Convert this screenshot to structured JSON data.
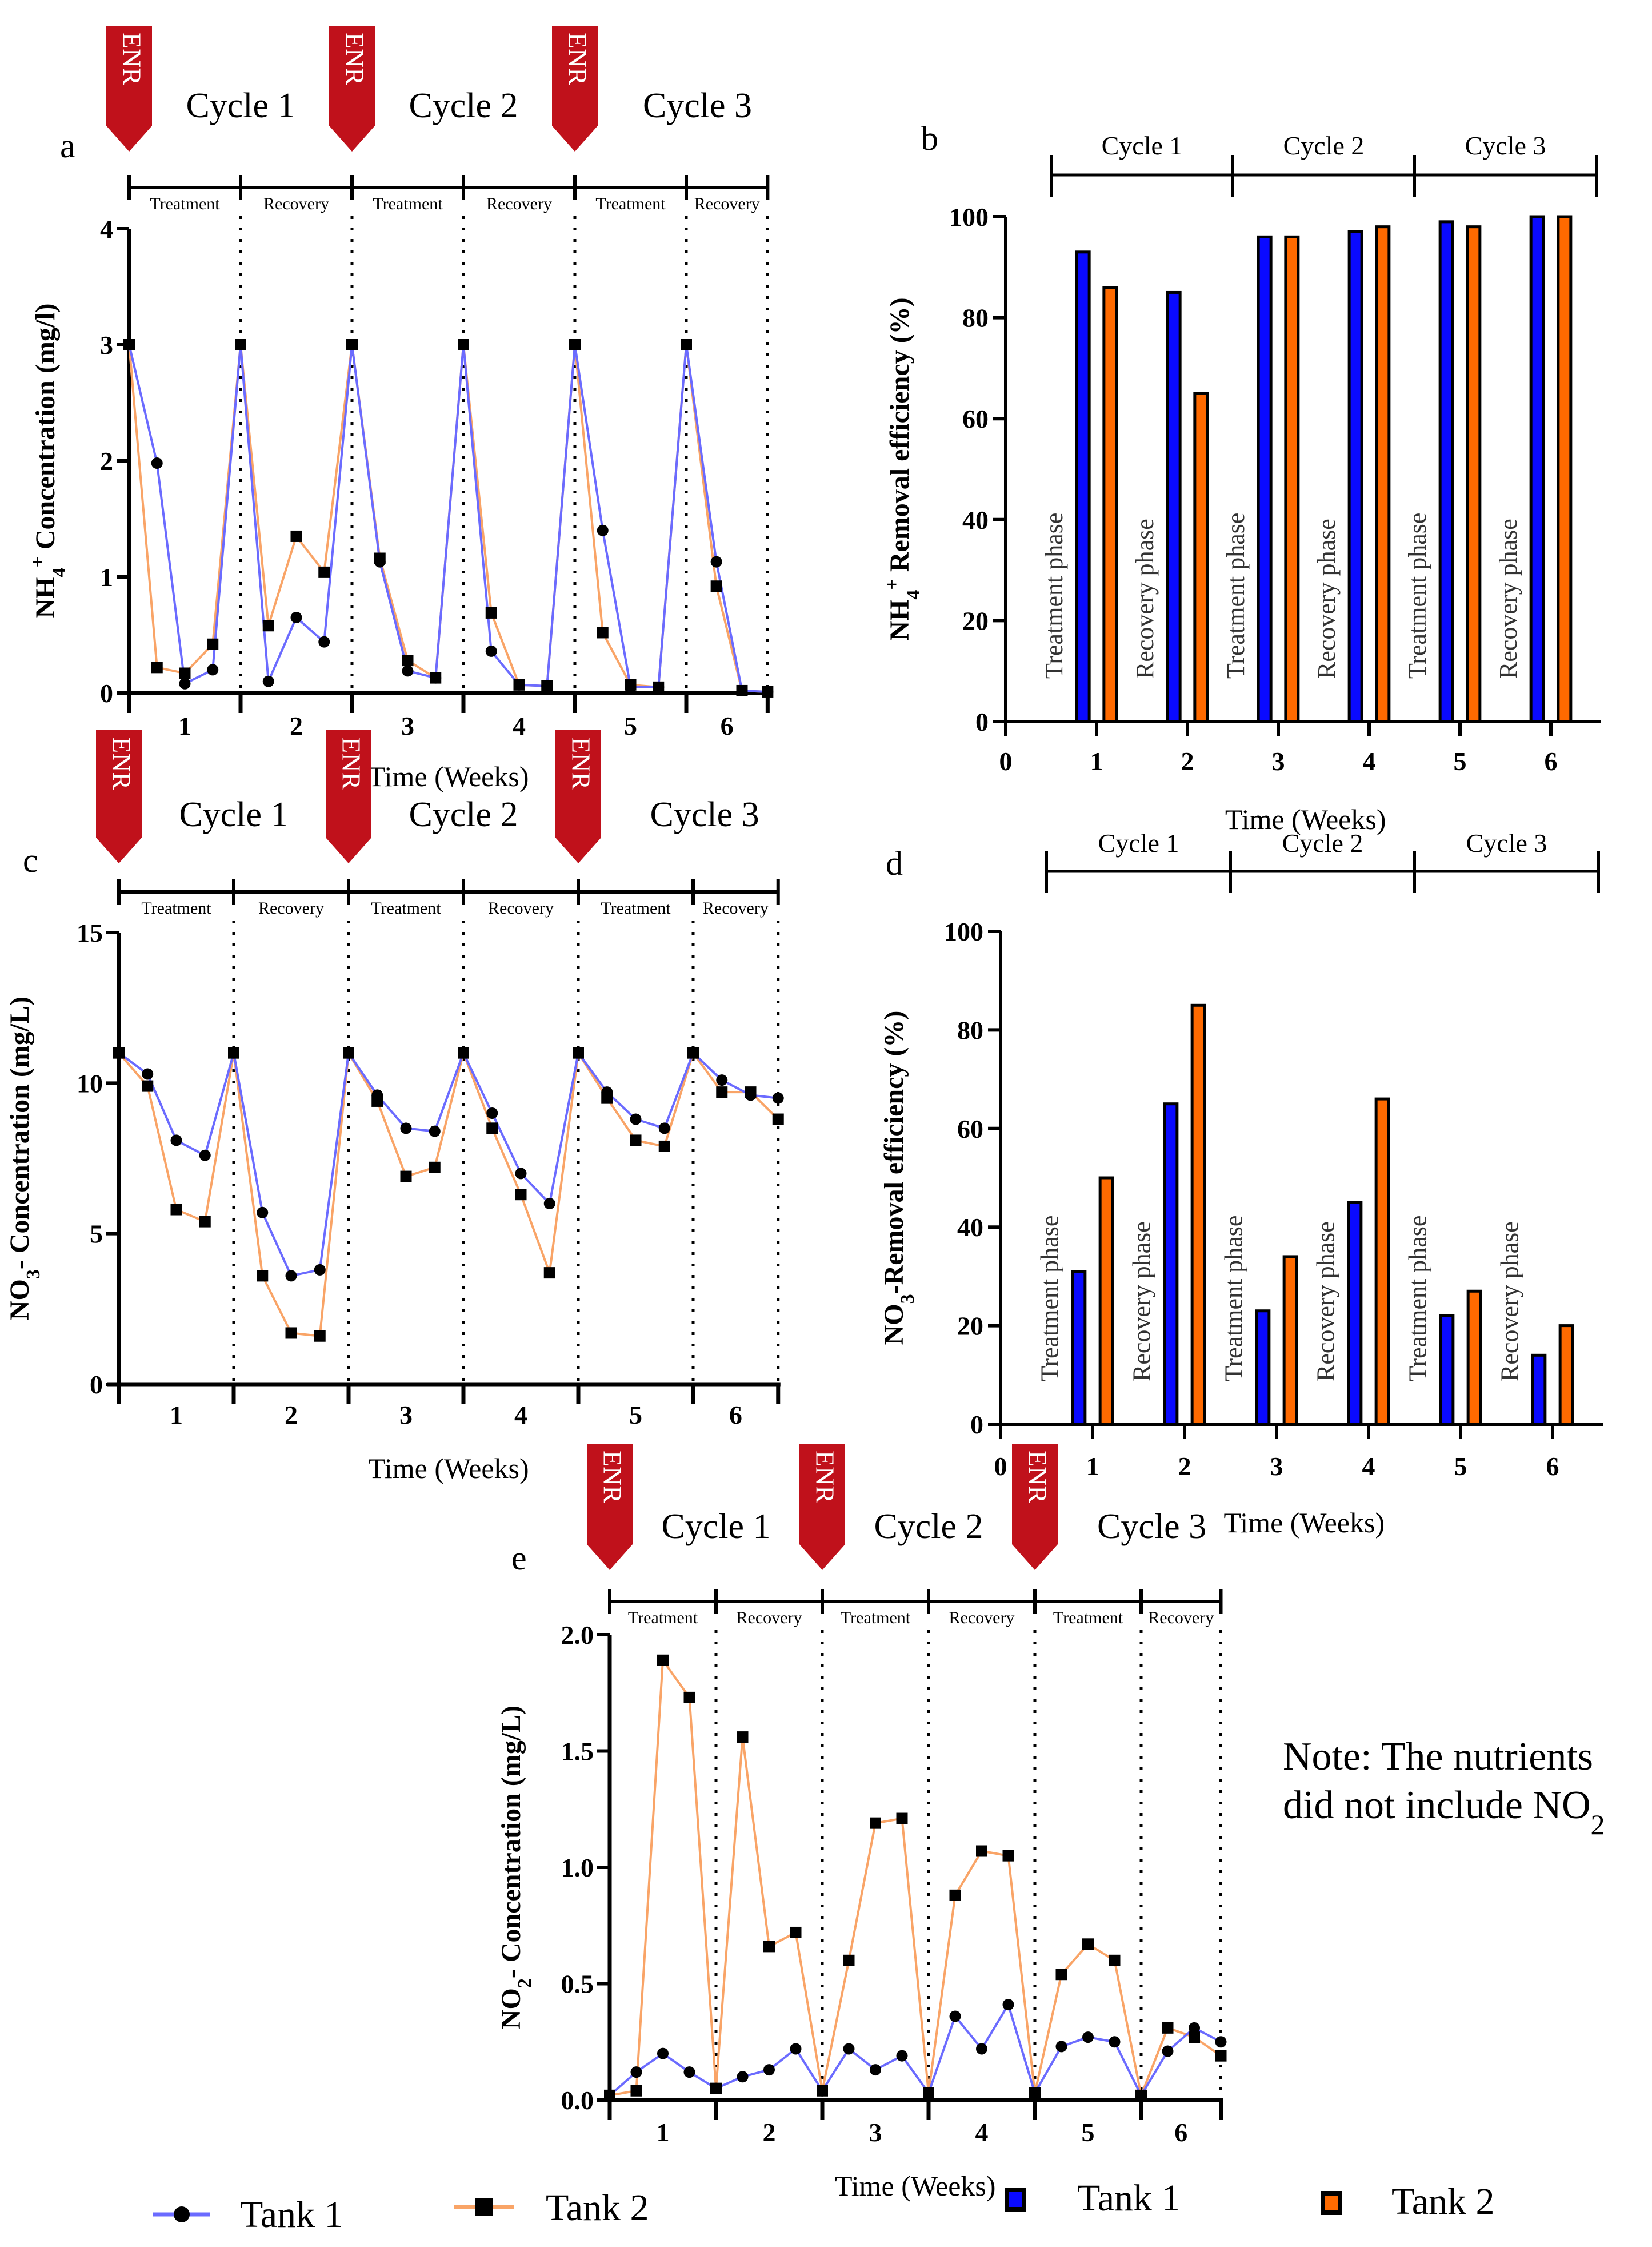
{
  "colors": {
    "tank1_line": "#6b6bff",
    "tank2_line": "#f9a467",
    "tank1_bar": "#0a0aff",
    "tank2_bar": "#ff6a00",
    "enr": "#c0111b",
    "marker": "#000000"
  },
  "badge_label": "ENR",
  "cycle_labels": [
    "Cycle 1",
    "Cycle 2",
    "Cycle 3"
  ],
  "phase_labels": [
    "Treatment",
    "Recovery",
    "Treatment",
    "Recovery",
    "Treatment",
    "Recovery"
  ],
  "bar_phase_labels": [
    "Treatment phase",
    "Recovery phase",
    "Treatment phase",
    "Recovery phase",
    "Treatment phase",
    "Recovery phase"
  ],
  "chart_data": [
    {
      "id": "a",
      "type": "line",
      "panel_letter": "a",
      "xlabel": "Time (Weeks)",
      "ylabel_parts": [
        {
          "t": "NH"
        },
        {
          "t": "4",
          "sub": true
        },
        {
          "t": "+",
          "sup": true
        },
        {
          "t": " Concentration (mg/l)"
        }
      ],
      "x_tick_labels": [
        "1",
        "2",
        "3",
        "4",
        "5",
        "6"
      ],
      "xlim": [
        0,
        5.73
      ],
      "ylim": [
        0,
        4
      ],
      "y_ticks": [
        0,
        1,
        2,
        3,
        4
      ],
      "y_tick_labels": [
        "0",
        "1",
        "2",
        "3",
        "4"
      ],
      "x": [
        0,
        0.25,
        0.5,
        0.75,
        1,
        1.25,
        1.5,
        1.75,
        2,
        2.25,
        2.5,
        2.75,
        3,
        3.25,
        3.5,
        3.75,
        4,
        4.25,
        4.5,
        4.75,
        5,
        5.27,
        5.5,
        5.73
      ],
      "series": [
        {
          "name": "Tank 1",
          "marker": "circle",
          "values": [
            3,
            1.98,
            0.08,
            0.2,
            3,
            0.1,
            0.65,
            0.44,
            3,
            1.13,
            0.19,
            0.13,
            3,
            0.36,
            0.07,
            0.06,
            3,
            1.4,
            0.05,
            0.05,
            3,
            1.13,
            0.02,
            0.01
          ]
        },
        {
          "name": "Tank 2",
          "marker": "square",
          "values": [
            3,
            0.22,
            0.17,
            0.42,
            3,
            0.58,
            1.35,
            1.04,
            3,
            1.16,
            0.28,
            0.13,
            3,
            0.69,
            0.07,
            0.06,
            3,
            0.52,
            0.07,
            0.05,
            3,
            0.92,
            0.02,
            0.01
          ]
        }
      ]
    },
    {
      "id": "b",
      "type": "bar",
      "panel_letter": "b",
      "xlabel": "Time (Weeks)",
      "ylabel_parts": [
        {
          "t": "NH"
        },
        {
          "t": "4",
          "sub": true
        },
        {
          "t": "+",
          "sup": true
        },
        {
          "t": " Removal efficiency (%)"
        }
      ],
      "x_tick_labels": [
        "0",
        "1",
        "2",
        "3",
        "4",
        "5",
        "6"
      ],
      "ylim": [
        0,
        100
      ],
      "y_ticks": [
        0,
        20,
        40,
        60,
        80,
        100
      ],
      "y_tick_labels": [
        "0",
        "20",
        "40",
        "60",
        "80",
        "100"
      ],
      "categories": [
        1,
        2,
        3,
        4,
        5,
        6
      ],
      "series": [
        {
          "name": "Tank 1",
          "values": [
            93,
            85,
            96,
            97,
            99,
            100
          ]
        },
        {
          "name": "Tank 2",
          "values": [
            86,
            65,
            96,
            98,
            98,
            100
          ]
        }
      ]
    },
    {
      "id": "c",
      "type": "line",
      "panel_letter": "c",
      "xlabel": "Time (Weeks)",
      "ylabel_parts": [
        {
          "t": "NO"
        },
        {
          "t": "3",
          "sub": true
        },
        {
          "t": "- Concentration (mg/L)"
        }
      ],
      "x_tick_labels": [
        "1",
        "2",
        "3",
        "4",
        "5",
        "6"
      ],
      "xlim": [
        0,
        5.74
      ],
      "ylim": [
        0,
        15
      ],
      "y_ticks": [
        0,
        5,
        10,
        15
      ],
      "y_tick_labels": [
        "0",
        "5",
        "10",
        "15"
      ],
      "x": [
        0,
        0.25,
        0.5,
        0.75,
        1,
        1.25,
        1.5,
        1.75,
        2,
        2.25,
        2.5,
        2.75,
        3,
        3.25,
        3.5,
        3.75,
        4,
        4.25,
        4.5,
        4.75,
        5,
        5.25,
        5.5,
        5.74
      ],
      "series": [
        {
          "name": "Tank 1",
          "marker": "circle",
          "values": [
            11,
            10.3,
            8.1,
            7.6,
            11,
            5.7,
            3.6,
            3.8,
            11,
            9.6,
            8.5,
            8.4,
            11,
            9.0,
            7.0,
            6.0,
            11,
            9.7,
            8.8,
            8.5,
            11,
            10.1,
            9.6,
            9.5
          ]
        },
        {
          "name": "Tank 2",
          "marker": "square",
          "values": [
            11,
            9.9,
            5.8,
            5.4,
            11,
            3.6,
            1.7,
            1.6,
            11,
            9.4,
            6.9,
            7.2,
            11,
            8.5,
            6.3,
            3.7,
            11,
            9.5,
            8.1,
            7.9,
            11,
            9.7,
            9.7,
            8.8
          ]
        }
      ]
    },
    {
      "id": "d",
      "type": "bar",
      "panel_letter": "d",
      "xlabel": "Time (Weeks)",
      "ylabel_parts": [
        {
          "t": "NO"
        },
        {
          "t": "3",
          "sub": true
        },
        {
          "t": "-Removal efficiency (%)"
        }
      ],
      "x_tick_labels": [
        "0",
        "1",
        "2",
        "3",
        "4",
        "5",
        "6"
      ],
      "ylim": [
        0,
        100
      ],
      "y_ticks": [
        0,
        20,
        40,
        60,
        80,
        100
      ],
      "y_tick_labels": [
        "0",
        "20",
        "40",
        "60",
        "80",
        "100"
      ],
      "categories": [
        1,
        2,
        3,
        4,
        5,
        6
      ],
      "series": [
        {
          "name": "Tank 1",
          "values": [
            31,
            65,
            23,
            45,
            22,
            14
          ]
        },
        {
          "name": "Tank 2",
          "values": [
            50,
            85,
            34,
            66,
            27,
            20
          ]
        }
      ]
    },
    {
      "id": "e",
      "type": "line",
      "panel_letter": "e",
      "xlabel": "Time (Weeks)",
      "ylabel_parts": [
        {
          "t": "NO"
        },
        {
          "t": "2",
          "sub": true
        },
        {
          "t": "- Concentration (mg/L)"
        }
      ],
      "x_tick_labels": [
        "1",
        "2",
        "3",
        "4",
        "5",
        "6"
      ],
      "xlim": [
        0,
        5.75
      ],
      "ylim": [
        0,
        2
      ],
      "y_ticks": [
        0,
        0.5,
        1,
        1.5,
        2
      ],
      "y_tick_labels": [
        "0.0",
        "0.5",
        "1.0",
        "1.5",
        "2.0"
      ],
      "x": [
        0,
        0.25,
        0.5,
        0.75,
        1,
        1.25,
        1.5,
        1.75,
        2,
        2.25,
        2.5,
        2.75,
        3,
        3.25,
        3.5,
        3.75,
        4,
        4.25,
        4.5,
        4.75,
        5,
        5.25,
        5.5,
        5.75
      ],
      "series": [
        {
          "name": "Tank 1",
          "marker": "circle",
          "values": [
            0.02,
            0.12,
            0.2,
            0.12,
            0.05,
            0.1,
            0.13,
            0.22,
            0.04,
            0.22,
            0.13,
            0.19,
            0.03,
            0.36,
            0.22,
            0.41,
            0.03,
            0.23,
            0.27,
            0.25,
            0.02,
            0.21,
            0.31,
            0.25
          ]
        },
        {
          "name": "Tank 2",
          "marker": "square",
          "values": [
            0.02,
            0.04,
            1.89,
            1.73,
            0.05,
            1.56,
            0.66,
            0.72,
            0.04,
            0.6,
            1.19,
            1.21,
            0.03,
            0.88,
            1.07,
            1.05,
            0.03,
            0.54,
            0.67,
            0.6,
            0.02,
            0.31,
            0.27,
            0.19
          ]
        }
      ]
    }
  ],
  "note": {
    "line1": "Note: The nutrients",
    "line2": "did not include NO",
    "line2_sub": "2"
  },
  "legend_lines": [
    {
      "label": "Tank 1"
    },
    {
      "label": "Tank 2"
    }
  ],
  "legend_bars": [
    {
      "label": "Tank 1"
    },
    {
      "label": "Tank 2"
    }
  ]
}
